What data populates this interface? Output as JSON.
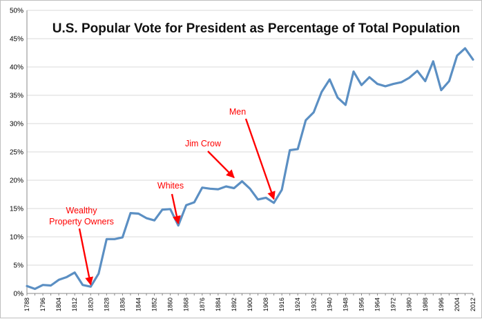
{
  "chart_data": {
    "type": "line",
    "title": "U.S. Popular Vote for President as Percentage of Total Population",
    "xlabel": "",
    "ylabel": "",
    "ylim": [
      0,
      50
    ],
    "y_ticks": [
      "0%",
      "5%",
      "10%",
      "15%",
      "20%",
      "25%",
      "30%",
      "35%",
      "40%",
      "45%",
      "50%"
    ],
    "x_tick_labels": [
      "1788",
      "1796",
      "1804",
      "1812",
      "1820",
      "1828",
      "1836",
      "1844",
      "1852",
      "1860",
      "1868",
      "1876",
      "1884",
      "1892",
      "1900",
      "1908",
      "1916",
      "1924",
      "1932",
      "1940",
      "1948",
      "1956",
      "1964",
      "1972",
      "1980",
      "1988",
      "1996",
      "2004",
      "2012"
    ],
    "grid": "horizontal",
    "line_color": "#5b8fc3",
    "annotation_color": "#ff0000",
    "series": [
      {
        "x": [
          1788,
          1792,
          1796,
          1800,
          1804,
          1808,
          1812,
          1816,
          1820,
          1824,
          1828,
          1832,
          1836,
          1840,
          1844,
          1848,
          1852,
          1856,
          1860,
          1864,
          1868,
          1872,
          1876,
          1880,
          1884,
          1888,
          1892,
          1896,
          1900,
          1904,
          1908,
          1912,
          1916,
          1920,
          1924,
          1928,
          1932,
          1936,
          1940,
          1944,
          1948,
          1952,
          1956,
          1960,
          1964,
          1968,
          1972,
          1976,
          1980,
          1984,
          1988,
          1992,
          1996,
          2000,
          2004,
          2008,
          2012
        ],
        "values": [
          1.3,
          0.8,
          1.5,
          1.4,
          2.4,
          2.9,
          3.7,
          1.5,
          1.2,
          3.5,
          9.6,
          9.6,
          9.9,
          14.2,
          14.1,
          13.3,
          12.9,
          14.8,
          14.9,
          12.0,
          15.6,
          16.1,
          18.7,
          18.5,
          18.4,
          18.9,
          18.6,
          19.8,
          18.5,
          16.6,
          16.9,
          16.0,
          18.3,
          25.3,
          25.5,
          30.6,
          32.0,
          35.6,
          37.8,
          34.6,
          33.3,
          39.2,
          36.8,
          38.2,
          37.0,
          36.6,
          37.0,
          37.3,
          38.1,
          39.3,
          37.5,
          41.0,
          35.9,
          37.5,
          42.0,
          43.3,
          41.3
        ]
      }
    ],
    "annotations": [
      {
        "text_lines": [
          "Wealthy",
          "Property Owners"
        ],
        "target_x": 1820,
        "target_y": 1.2
      },
      {
        "text_lines": [
          "Whites"
        ],
        "target_x": 1864,
        "target_y": 12.0
      },
      {
        "text_lines": [
          "Jim Crow"
        ],
        "target_x": 1892,
        "target_y": 20.1
      },
      {
        "text_lines": [
          "Men"
        ],
        "target_x": 1912,
        "target_y": 16.3
      }
    ]
  }
}
